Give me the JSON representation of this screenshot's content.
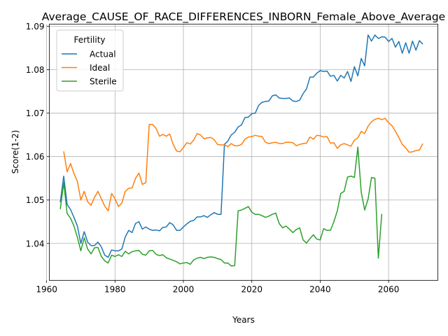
{
  "chart_data": {
    "type": "line",
    "title": "Average_CAUSE_OF_RACE_DIFFERENCES_INBORN_Female_Above_Average",
    "xlabel": "Years",
    "ylabel": "Score(1-2)",
    "xlim": [
      1960.8,
      2074.4
    ],
    "ylim": [
      1.0315,
      1.0905
    ],
    "xticks": [
      1960,
      1980,
      2000,
      2020,
      2040,
      2060
    ],
    "yticks": [
      1.04,
      1.05,
      1.06,
      1.07,
      1.08,
      1.09
    ],
    "grid": true,
    "legend": {
      "title": "Fertility",
      "position": "upper left"
    },
    "series": [
      {
        "name": "Actual",
        "color": "#1f77b4",
        "points": [
          [
            1964,
            1.0495
          ],
          [
            1965,
            1.0555
          ],
          [
            1966,
            1.049
          ],
          [
            1967,
            1.0478
          ],
          [
            1968,
            1.046
          ],
          [
            1969,
            1.044
          ],
          [
            1970,
            1.04
          ],
          [
            1971,
            1.0427
          ],
          [
            1972,
            1.0403
          ],
          [
            1973,
            1.0395
          ],
          [
            1974,
            1.0395
          ],
          [
            1975,
            1.0403
          ],
          [
            1976,
            1.0392
          ],
          [
            1977,
            1.0373
          ],
          [
            1978,
            1.0368
          ],
          [
            1979,
            1.0385
          ],
          [
            1980,
            1.0383
          ],
          [
            1981,
            1.0383
          ],
          [
            1982,
            1.0387
          ],
          [
            1983,
            1.0415
          ],
          [
            1984,
            1.043
          ],
          [
            1985,
            1.0425
          ],
          [
            1986,
            1.0446
          ],
          [
            1987,
            1.045
          ],
          [
            1988,
            1.0433
          ],
          [
            1989,
            1.0438
          ],
          [
            1990,
            1.0433
          ],
          [
            1991,
            1.043
          ],
          [
            1992,
            1.0431
          ],
          [
            1993,
            1.0429
          ],
          [
            1994,
            1.0437
          ],
          [
            1995,
            1.0438
          ],
          [
            1996,
            1.0448
          ],
          [
            1997,
            1.0443
          ],
          [
            1998,
            1.043
          ],
          [
            1999,
            1.043
          ],
          [
            2000,
            1.0438
          ],
          [
            2001,
            1.0445
          ],
          [
            2002,
            1.0451
          ],
          [
            2003,
            1.0453
          ],
          [
            2004,
            1.0461
          ],
          [
            2005,
            1.0461
          ],
          [
            2006,
            1.0464
          ],
          [
            2007,
            1.046
          ],
          [
            2008,
            1.0466
          ],
          [
            2009,
            1.0471
          ],
          [
            2010,
            1.0467
          ],
          [
            2011,
            1.0467
          ],
          [
            2012,
            1.0628
          ],
          [
            2013,
            1.0636
          ],
          [
            2014,
            1.065
          ],
          [
            2015,
            1.0656
          ],
          [
            2016,
            1.0668
          ],
          [
            2017,
            1.0673
          ],
          [
            2018,
            1.069
          ],
          [
            2019,
            1.0691
          ],
          [
            2020,
            1.0699
          ],
          [
            2021,
            1.07
          ],
          [
            2022,
            1.0718
          ],
          [
            2023,
            1.0725
          ],
          [
            2024,
            1.0727
          ],
          [
            2025,
            1.0728
          ],
          [
            2026,
            1.074
          ],
          [
            2027,
            1.0742
          ],
          [
            2028,
            1.0735
          ],
          [
            2029,
            1.0734
          ],
          [
            2030,
            1.0734
          ],
          [
            2031,
            1.0735
          ],
          [
            2032,
            1.0728
          ],
          [
            2033,
            1.0727
          ],
          [
            2034,
            1.073
          ],
          [
            2035,
            1.0745
          ],
          [
            2036,
            1.0756
          ],
          [
            2037,
            1.0783
          ],
          [
            2038,
            1.0783
          ],
          [
            2039,
            1.0792
          ],
          [
            2040,
            1.0798
          ],
          [
            2041,
            1.0796
          ],
          [
            2042,
            1.0797
          ],
          [
            2043,
            1.0785
          ],
          [
            2044,
            1.0787
          ],
          [
            2045,
            1.0774
          ],
          [
            2046,
            1.0787
          ],
          [
            2047,
            1.0781
          ],
          [
            2048,
            1.0796
          ],
          [
            2049,
            1.0773
          ],
          [
            2050,
            1.0807
          ],
          [
            2051,
            1.0786
          ],
          [
            2052,
            1.0826
          ],
          [
            2053,
            1.0809
          ],
          [
            2054,
            1.088
          ],
          [
            2055,
            1.0866
          ],
          [
            2056,
            1.088
          ],
          [
            2057,
            1.0872
          ],
          [
            2058,
            1.0876
          ],
          [
            2059,
            1.0875
          ],
          [
            2060,
            1.0865
          ],
          [
            2061,
            1.0872
          ],
          [
            2062,
            1.0852
          ],
          [
            2063,
            1.0865
          ],
          [
            2064,
            1.0838
          ],
          [
            2065,
            1.0862
          ],
          [
            2066,
            1.0838
          ],
          [
            2067,
            1.0866
          ],
          [
            2068,
            1.0845
          ],
          [
            2069,
            1.0867
          ],
          [
            2070,
            1.0859
          ]
        ]
      },
      {
        "name": "Ideal",
        "color": "#ff7f0e",
        "points": [
          [
            1965,
            1.0612
          ],
          [
            1966,
            1.0565
          ],
          [
            1967,
            1.0584
          ],
          [
            1968,
            1.0561
          ],
          [
            1969,
            1.0543
          ],
          [
            1970,
            1.05
          ],
          [
            1971,
            1.052
          ],
          [
            1972,
            1.0496
          ],
          [
            1973,
            1.0488
          ],
          [
            1974,
            1.0506
          ],
          [
            1975,
            1.052
          ],
          [
            1976,
            1.0503
          ],
          [
            1977,
            1.0486
          ],
          [
            1978,
            1.0475
          ],
          [
            1979,
            1.0515
          ],
          [
            1980,
            1.0503
          ],
          [
            1981,
            1.0485
          ],
          [
            1982,
            1.0493
          ],
          [
            1983,
            1.052
          ],
          [
            1984,
            1.0527
          ],
          [
            1985,
            1.0528
          ],
          [
            1986,
            1.055
          ],
          [
            1987,
            1.0562
          ],
          [
            1988,
            1.0536
          ],
          [
            1989,
            1.054
          ],
          [
            1990,
            1.0674
          ],
          [
            1991,
            1.0674
          ],
          [
            1992,
            1.0665
          ],
          [
            1993,
            1.0647
          ],
          [
            1994,
            1.0651
          ],
          [
            1995,
            1.0647
          ],
          [
            1996,
            1.0652
          ],
          [
            1997,
            1.0628
          ],
          [
            1998,
            1.0613
          ],
          [
            1999,
            1.0611
          ],
          [
            2000,
            1.0621
          ],
          [
            2001,
            1.0632
          ],
          [
            2002,
            1.0629
          ],
          [
            2003,
            1.0638
          ],
          [
            2004,
            1.0653
          ],
          [
            2005,
            1.065
          ],
          [
            2006,
            1.0641
          ],
          [
            2007,
            1.0643
          ],
          [
            2008,
            1.0644
          ],
          [
            2009,
            1.0639
          ],
          [
            2010,
            1.0628
          ],
          [
            2011,
            1.0627
          ],
          [
            2012,
            1.0627
          ],
          [
            2013,
            1.0623
          ],
          [
            2014,
            1.063
          ],
          [
            2015,
            1.0625
          ],
          [
            2016,
            1.0625
          ],
          [
            2017,
            1.0628
          ],
          [
            2018,
            1.064
          ],
          [
            2019,
            1.0645
          ],
          [
            2020,
            1.0646
          ],
          [
            2021,
            1.0649
          ],
          [
            2022,
            1.0647
          ],
          [
            2023,
            1.0646
          ],
          [
            2024,
            1.0633
          ],
          [
            2025,
            1.063
          ],
          [
            2026,
            1.0632
          ],
          [
            2027,
            1.0633
          ],
          [
            2028,
            1.063
          ],
          [
            2029,
            1.063
          ],
          [
            2030,
            1.0633
          ],
          [
            2031,
            1.0633
          ],
          [
            2032,
            1.0632
          ],
          [
            2033,
            1.0625
          ],
          [
            2034,
            1.0628
          ],
          [
            2035,
            1.063
          ],
          [
            2036,
            1.0631
          ],
          [
            2037,
            1.0645
          ],
          [
            2038,
            1.064
          ],
          [
            2039,
            1.0649
          ],
          [
            2040,
            1.0648
          ],
          [
            2041,
            1.0645
          ],
          [
            2042,
            1.0646
          ],
          [
            2043,
            1.0631
          ],
          [
            2044,
            1.0632
          ],
          [
            2045,
            1.0619
          ],
          [
            2046,
            1.0627
          ],
          [
            2047,
            1.063
          ],
          [
            2048,
            1.0627
          ],
          [
            2049,
            1.0624
          ],
          [
            2050,
            1.0638
          ],
          [
            2051,
            1.0643
          ],
          [
            2052,
            1.0658
          ],
          [
            2053,
            1.0653
          ],
          [
            2054,
            1.067
          ],
          [
            2055,
            1.068
          ],
          [
            2056,
            1.0686
          ],
          [
            2057,
            1.0688
          ],
          [
            2058,
            1.0685
          ],
          [
            2059,
            1.0688
          ],
          [
            2060,
            1.0678
          ],
          [
            2061,
            1.0671
          ],
          [
            2062,
            1.0658
          ],
          [
            2063,
            1.0644
          ],
          [
            2064,
            1.0628
          ],
          [
            2065,
            1.062
          ],
          [
            2066,
            1.061
          ],
          [
            2067,
            1.0611
          ],
          [
            2068,
            1.0614
          ],
          [
            2069,
            1.0615
          ],
          [
            2070,
            1.063
          ]
        ]
      },
      {
        "name": "Sterile",
        "color": "#2ca02c",
        "points": [
          [
            1964,
            1.0479
          ],
          [
            1965,
            1.054
          ],
          [
            1966,
            1.0469
          ],
          [
            1967,
            1.0458
          ],
          [
            1968,
            1.044
          ],
          [
            1969,
            1.0414
          ],
          [
            1970,
            1.0383
          ],
          [
            1971,
            1.0413
          ],
          [
            1972,
            1.0387
          ],
          [
            1973,
            1.0376
          ],
          [
            1974,
            1.039
          ],
          [
            1975,
            1.0391
          ],
          [
            1976,
            1.037
          ],
          [
            1977,
            1.036
          ],
          [
            1978,
            1.0355
          ],
          [
            1979,
            1.0373
          ],
          [
            1980,
            1.037
          ],
          [
            1981,
            1.0374
          ],
          [
            1982,
            1.037
          ],
          [
            1983,
            1.0382
          ],
          [
            1984,
            1.0376
          ],
          [
            1985,
            1.0381
          ],
          [
            1986,
            1.0383
          ],
          [
            1987,
            1.0384
          ],
          [
            1988,
            1.0375
          ],
          [
            1989,
            1.0373
          ],
          [
            1990,
            1.0383
          ],
          [
            1991,
            1.0384
          ],
          [
            1992,
            1.0375
          ],
          [
            1993,
            1.0372
          ],
          [
            1994,
            1.0374
          ],
          [
            1995,
            1.0367
          ],
          [
            1996,
            1.0364
          ],
          [
            1997,
            1.0361
          ],
          [
            1998,
            1.0358
          ],
          [
            1999,
            1.0353
          ],
          [
            2000,
            1.0355
          ],
          [
            2001,
            1.0356
          ],
          [
            2002,
            1.0352
          ],
          [
            2003,
            1.0362
          ],
          [
            2004,
            1.0366
          ],
          [
            2005,
            1.0368
          ],
          [
            2006,
            1.0365
          ],
          [
            2007,
            1.0368
          ],
          [
            2008,
            1.0369
          ],
          [
            2009,
            1.0368
          ],
          [
            2010,
            1.0365
          ],
          [
            2011,
            1.0363
          ],
          [
            2012,
            1.0355
          ],
          [
            2013,
            1.0355
          ],
          [
            2014,
            1.0348
          ],
          [
            2015,
            1.0349
          ],
          [
            2016,
            1.0475
          ],
          [
            2017,
            1.0477
          ],
          [
            2018,
            1.0481
          ],
          [
            2019,
            1.0485
          ],
          [
            2020,
            1.0472
          ],
          [
            2021,
            1.0467
          ],
          [
            2022,
            1.0467
          ],
          [
            2023,
            1.0464
          ],
          [
            2024,
            1.046
          ],
          [
            2025,
            1.0463
          ],
          [
            2026,
            1.0467
          ],
          [
            2027,
            1.047
          ],
          [
            2028,
            1.0446
          ],
          [
            2029,
            1.0436
          ],
          [
            2030,
            1.044
          ],
          [
            2031,
            1.0433
          ],
          [
            2032,
            1.0425
          ],
          [
            2033,
            1.0432
          ],
          [
            2034,
            1.0436
          ],
          [
            2035,
            1.0408
          ],
          [
            2036,
            1.0401
          ],
          [
            2037,
            1.0411
          ],
          [
            2038,
            1.042
          ],
          [
            2039,
            1.041
          ],
          [
            2040,
            1.0408
          ],
          [
            2041,
            1.0434
          ],
          [
            2042,
            1.043
          ],
          [
            2043,
            1.043
          ],
          [
            2044,
            1.045
          ],
          [
            2045,
            1.0475
          ],
          [
            2046,
            1.0515
          ],
          [
            2047,
            1.052
          ],
          [
            2048,
            1.0553
          ],
          [
            2049,
            1.0555
          ],
          [
            2050,
            1.0552
          ],
          [
            2051,
            1.0622
          ],
          [
            2052,
            1.0518
          ],
          [
            2053,
            1.0477
          ],
          [
            2054,
            1.0502
          ],
          [
            2055,
            1.0552
          ],
          [
            2056,
            1.055
          ],
          [
            2057,
            1.0366
          ],
          [
            2058,
            1.0468
          ]
        ]
      }
    ]
  }
}
